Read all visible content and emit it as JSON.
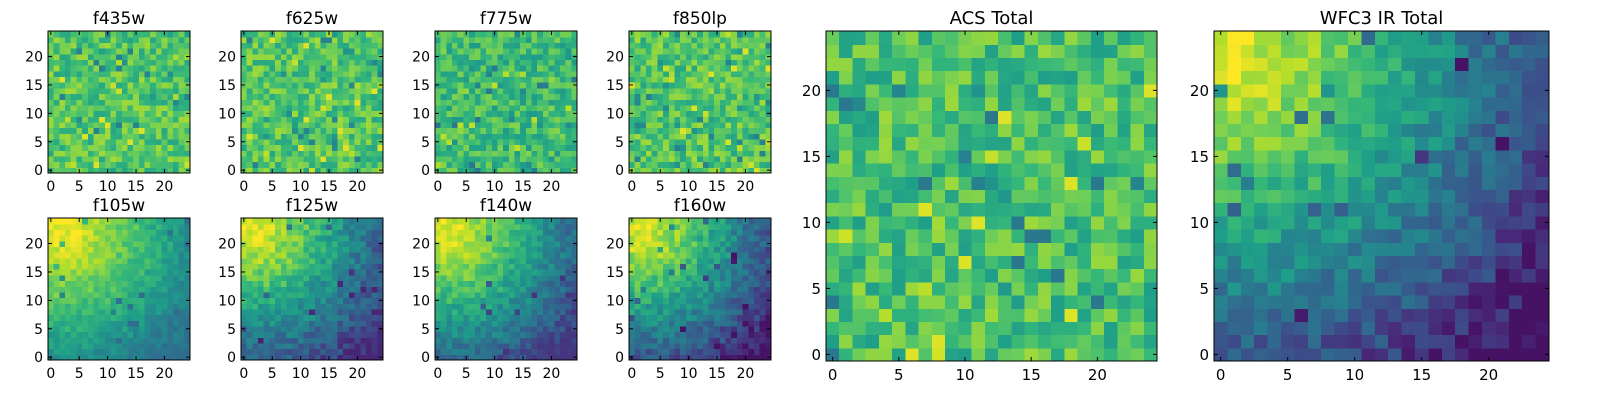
{
  "figure": {
    "colormap": "viridis",
    "tick_color": "#000000",
    "frame_color": "#000000"
  },
  "chart_data": [
    {
      "type": "heatmap",
      "title": "f435w",
      "grid_size": 25,
      "xlim": [
        0,
        25
      ],
      "ylim": [
        0,
        25
      ],
      "xticks": [
        0,
        5,
        10,
        15,
        20
      ],
      "yticks": [
        0,
        5,
        10,
        15,
        20
      ],
      "pattern": "uniform",
      "value_range": [
        0.45,
        0.95
      ]
    },
    {
      "type": "heatmap",
      "title": "f625w",
      "grid_size": 25,
      "xlim": [
        0,
        25
      ],
      "ylim": [
        0,
        25
      ],
      "xticks": [
        0,
        5,
        10,
        15,
        20
      ],
      "yticks": [
        0,
        5,
        10,
        15,
        20
      ],
      "pattern": "uniform",
      "value_range": [
        0.45,
        0.95
      ]
    },
    {
      "type": "heatmap",
      "title": "f775w",
      "grid_size": 25,
      "xlim": [
        0,
        25
      ],
      "ylim": [
        0,
        25
      ],
      "xticks": [
        0,
        5,
        10,
        15,
        20
      ],
      "yticks": [
        0,
        5,
        10,
        15,
        20
      ],
      "pattern": "uniform",
      "value_range": [
        0.4,
        0.9
      ]
    },
    {
      "type": "heatmap",
      "title": "f850lp",
      "grid_size": 25,
      "xlim": [
        0,
        25
      ],
      "ylim": [
        0,
        25
      ],
      "xticks": [
        0,
        5,
        10,
        15,
        20
      ],
      "yticks": [
        0,
        5,
        10,
        15,
        20
      ],
      "pattern": "uniform",
      "value_range": [
        0.45,
        0.95
      ]
    },
    {
      "type": "heatmap",
      "title": "f105w",
      "grid_size": 25,
      "xlim": [
        0,
        25
      ],
      "ylim": [
        0,
        25
      ],
      "xticks": [
        0,
        5,
        10,
        15,
        20
      ],
      "yticks": [
        0,
        5,
        10,
        15,
        20
      ],
      "pattern": "gradient",
      "peak": [
        2,
        22
      ],
      "value_range": [
        0.35,
        1.0
      ]
    },
    {
      "type": "heatmap",
      "title": "f125w",
      "grid_size": 25,
      "xlim": [
        0,
        25
      ],
      "ylim": [
        0,
        25
      ],
      "xticks": [
        0,
        5,
        10,
        15,
        20
      ],
      "yticks": [
        0,
        5,
        10,
        15,
        20
      ],
      "pattern": "gradient",
      "peak": [
        2,
        22
      ],
      "value_range": [
        0.1,
        1.0
      ]
    },
    {
      "type": "heatmap",
      "title": "f140w",
      "grid_size": 25,
      "xlim": [
        0,
        25
      ],
      "ylim": [
        0,
        25
      ],
      "xticks": [
        0,
        5,
        10,
        15,
        20
      ],
      "yticks": [
        0,
        5,
        10,
        15,
        20
      ],
      "pattern": "gradient",
      "peak": [
        2,
        22
      ],
      "value_range": [
        0.15,
        1.0
      ]
    },
    {
      "type": "heatmap",
      "title": "f160w",
      "grid_size": 25,
      "xlim": [
        0,
        25
      ],
      "ylim": [
        0,
        25
      ],
      "xticks": [
        0,
        5,
        10,
        15,
        20
      ],
      "yticks": [
        0,
        5,
        10,
        15,
        20
      ],
      "pattern": "gradient",
      "peak": [
        2,
        22
      ],
      "value_range": [
        0.05,
        1.0
      ]
    },
    {
      "type": "heatmap",
      "title": "ACS Total",
      "grid_size": 25,
      "xlim": [
        0,
        25
      ],
      "ylim": [
        0,
        25
      ],
      "xticks": [
        0,
        5,
        10,
        15,
        20
      ],
      "yticks": [
        0,
        5,
        10,
        15,
        20
      ],
      "pattern": "uniform",
      "value_range": [
        0.4,
        0.95
      ]
    },
    {
      "type": "heatmap",
      "title": "WFC3 IR Total",
      "grid_size": 25,
      "xlim": [
        0,
        25
      ],
      "ylim": [
        0,
        25
      ],
      "xticks": [
        0,
        5,
        10,
        15,
        20
      ],
      "yticks": [
        0,
        5,
        10,
        15,
        20
      ],
      "pattern": "gradient",
      "peak": [
        1,
        22
      ],
      "value_range": [
        0.05,
        1.0
      ]
    }
  ]
}
